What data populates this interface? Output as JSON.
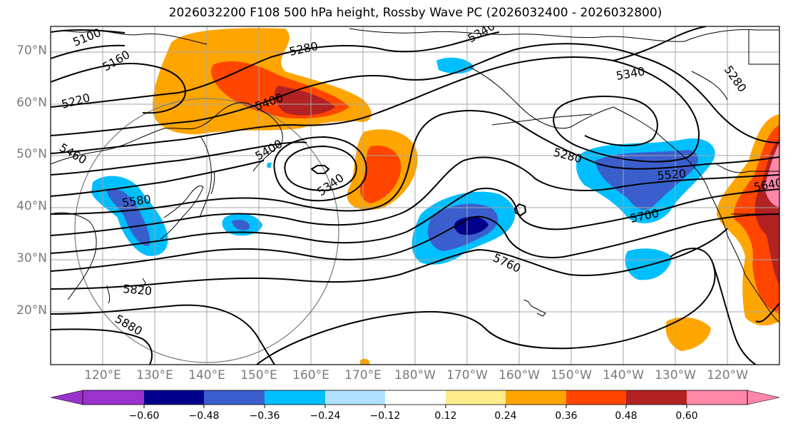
{
  "title": "2026032200 F108 500 hPa height, Rossby Wave PC (2026032400 - 2026032800)",
  "lat_labels": [
    "70°N",
    "60°N",
    "50°N",
    "40°N",
    "30°N",
    "20°N"
  ],
  "lon_labels": [
    "120°E",
    "130°E",
    "140°E",
    "150°E",
    "160°E",
    "170°E",
    "180°W",
    "170°W",
    "160°W",
    "150°W",
    "140°W",
    "130°W",
    "120°W"
  ],
  "contour_labels": [
    "5100",
    "5160",
    "5220",
    "5280",
    "5340",
    "5340",
    "5400",
    "5400",
    "5340",
    "5460",
    "5580",
    "5280",
    "5520",
    "5640",
    "5700",
    "5760",
    "5820",
    "5880",
    "5280"
  ],
  "colorbar": {
    "ticks": [
      "−0.60",
      "−0.48",
      "−0.36",
      "−0.24",
      "−0.12",
      "0.12",
      "0.24",
      "0.36",
      "0.48",
      "0.60"
    ],
    "colors": [
      "#9a32cd",
      "#00008b",
      "#3a5fcd",
      "#00bfff",
      "#b0e2ff",
      "#ffffff",
      "#ffec8b",
      "#ffa500",
      "#ff4500",
      "#b22222",
      "#ff88aa"
    ]
  },
  "colors": {
    "neg_light": "#00bfff",
    "neg_mid": "#3a5fcd",
    "neg_dark": "#00008b",
    "pos_light": "#ffa500",
    "pos_mid": "#ff4500",
    "pos_dark": "#b22222",
    "pos_max": "#ff88aa",
    "grid": "#a6a6a6",
    "contour": "#000000"
  }
}
